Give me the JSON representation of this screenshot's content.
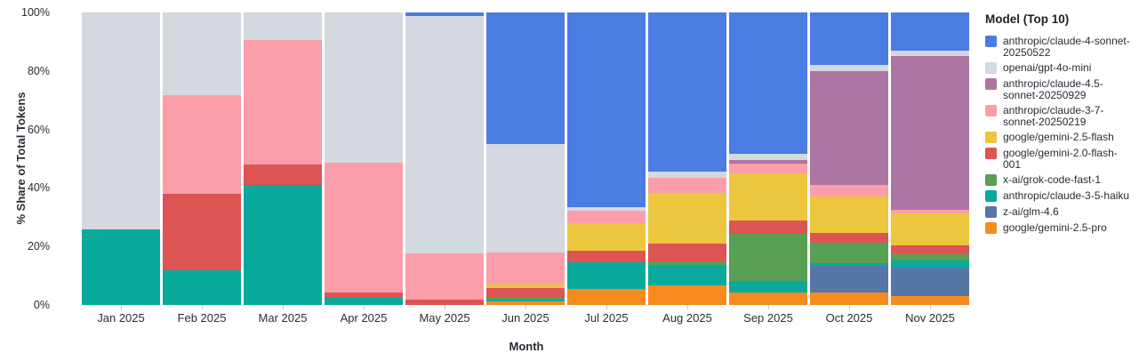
{
  "chart_data": {
    "type": "bar",
    "stacked": true,
    "normalized": "percent",
    "xlabel": "Month",
    "ylabel": "% Share of Total Tokens",
    "ylim": [
      0,
      100
    ],
    "grid": false,
    "y_ticks": [
      {
        "value": 0,
        "label": "0%"
      },
      {
        "value": 20,
        "label": "20%"
      },
      {
        "value": 40,
        "label": "40%"
      },
      {
        "value": 60,
        "label": "60%"
      },
      {
        "value": 80,
        "label": "80%"
      },
      {
        "value": 100,
        "label": "100%"
      }
    ],
    "legend_title": "Model (Top 10)",
    "legend_position": "right",
    "categories": [
      "Jan 2025",
      "Feb 2025",
      "Mar 2025",
      "Apr 2025",
      "May 2025",
      "Jun 2025",
      "Jul 2025",
      "Aug 2025",
      "Sep 2025",
      "Oct 2025",
      "Nov 2025"
    ],
    "series": [
      {
        "name": "anthropic/claude-4-sonnet-20250522",
        "color": "#4a7ce2",
        "values": [
          0,
          0,
          0,
          0,
          1.3,
          44.9,
          66.7,
          54.3,
          48.2,
          17.8,
          13.0
        ]
      },
      {
        "name": "openai/gpt-4o-mini",
        "color": "#d4d8df",
        "values": [
          74.3,
          28.2,
          9.4,
          51.5,
          81.1,
          36.9,
          1.2,
          2.2,
          2.2,
          2.2,
          1.8
        ]
      },
      {
        "name": "anthropic/claude-4.5-sonnet-20250929",
        "color": "#ad76a2",
        "values": [
          0,
          0,
          0,
          0,
          0,
          0,
          0,
          0,
          1.2,
          39.0,
          52.6
        ]
      },
      {
        "name": "anthropic/claude-3-7-sonnet-20250219",
        "color": "#fb9ea9",
        "values": [
          0,
          33.9,
          42.6,
          44.1,
          15.7,
          11.0,
          4.1,
          5.1,
          3.3,
          3.9,
          1.2
        ]
      },
      {
        "name": "google/gemini-2.5-flash",
        "color": "#ecc63d",
        "values": [
          0,
          0,
          0,
          0,
          0,
          1.4,
          9.4,
          17.4,
          16.2,
          12.4,
          10.9
        ]
      },
      {
        "name": "google/gemini-2.0-flash-001",
        "color": "#dc5454",
        "values": [
          0,
          26.0,
          7.1,
          2.0,
          1.9,
          3.3,
          4.0,
          6.1,
          4.6,
          3.5,
          3.3
        ]
      },
      {
        "name": "x-ai/grok-code-fast-1",
        "color": "#58a053",
        "values": [
          0,
          0,
          0,
          0,
          0,
          0.6,
          0,
          1.3,
          16.0,
          6.9,
          2.0
        ]
      },
      {
        "name": "anthropic/claude-3-5-haiku",
        "color": "#09a99b",
        "values": [
          25.7,
          11.9,
          40.9,
          2.4,
          0,
          0.6,
          9.1,
          6.8,
          4.0,
          1.0,
          2.4
        ]
      },
      {
        "name": "z-ai/glm-4.6",
        "color": "#5577a8",
        "values": [
          0,
          0,
          0,
          0,
          0,
          0,
          0,
          0,
          0,
          9.1,
          9.9
        ]
      },
      {
        "name": "google/gemini-2.5-pro",
        "color": "#f68c1f",
        "values": [
          0,
          0,
          0,
          0,
          0,
          1.2,
          5.5,
          6.8,
          4.2,
          4.2,
          2.9
        ]
      }
    ]
  }
}
